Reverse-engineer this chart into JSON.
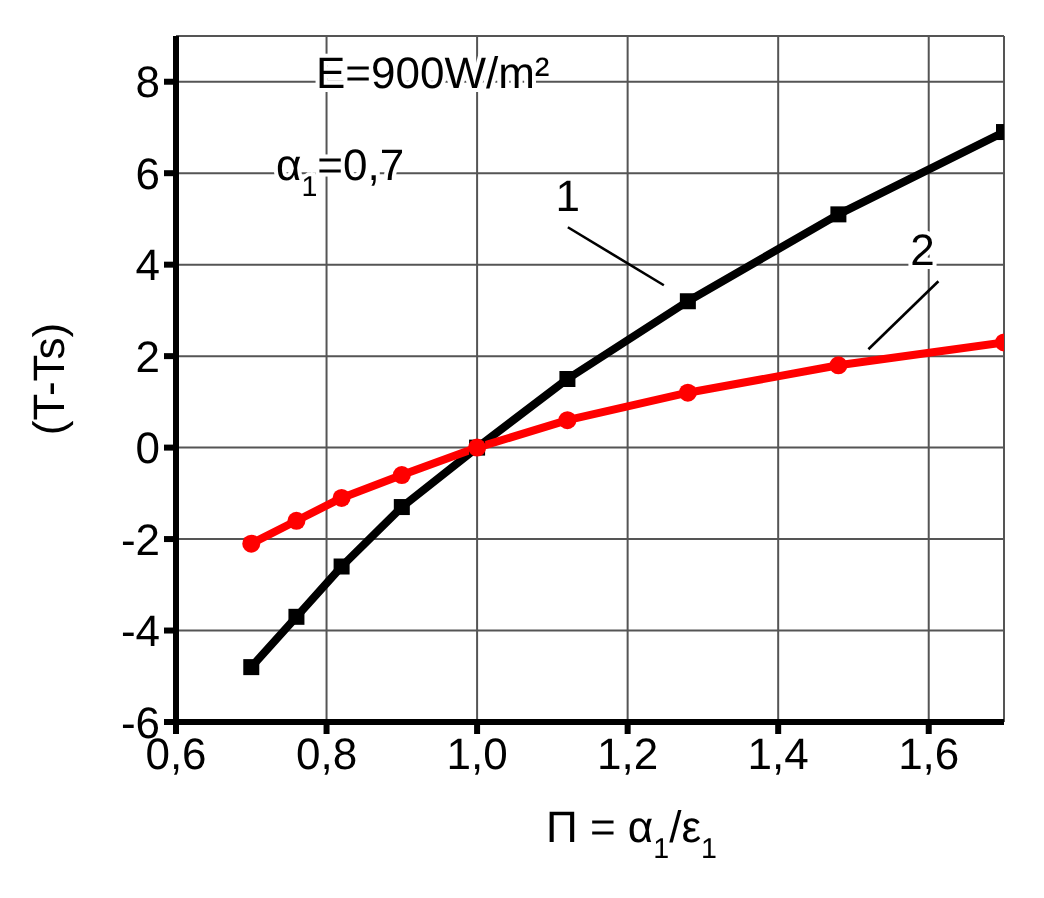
{
  "chart_data": {
    "type": "line",
    "xlabel": "Π = α$_{1}$/ε$_{1}$",
    "ylabel": "(T-Ts)",
    "annotations": [
      "E=900W/m²",
      "α$_{1}$=0,7"
    ],
    "x": [
      0.7,
      0.76,
      0.82,
      0.9,
      1.0,
      1.12,
      1.28,
      1.48,
      1.7
    ],
    "series": [
      {
        "name": "1",
        "color": "#000000",
        "marker": "square",
        "values": [
          -4.8,
          -3.7,
          -2.6,
          -1.3,
          0,
          1.5,
          3.2,
          5.1,
          6.9
        ]
      },
      {
        "name": "2",
        "color": "#ff0000",
        "marker": "circle",
        "values": [
          -2.1,
          -1.6,
          -1.1,
          -0.6,
          0,
          0.6,
          1.2,
          1.8,
          2.3
        ]
      }
    ],
    "xlim": [
      0.6,
      1.7
    ],
    "xticks": [
      {
        "value": 0.6,
        "label": "0,6"
      },
      {
        "value": 0.8,
        "label": "0,8"
      },
      {
        "value": 1.0,
        "label": "1,0"
      },
      {
        "value": 1.2,
        "label": "1,2"
      },
      {
        "value": 1.4,
        "label": "1,4"
      },
      {
        "value": 1.6,
        "label": "1,6"
      }
    ],
    "ylim": [
      -6,
      9
    ],
    "yticks": [
      -6,
      -4,
      -2,
      0,
      2,
      4,
      6,
      8
    ],
    "grid": true,
    "line_style": "solid"
  }
}
